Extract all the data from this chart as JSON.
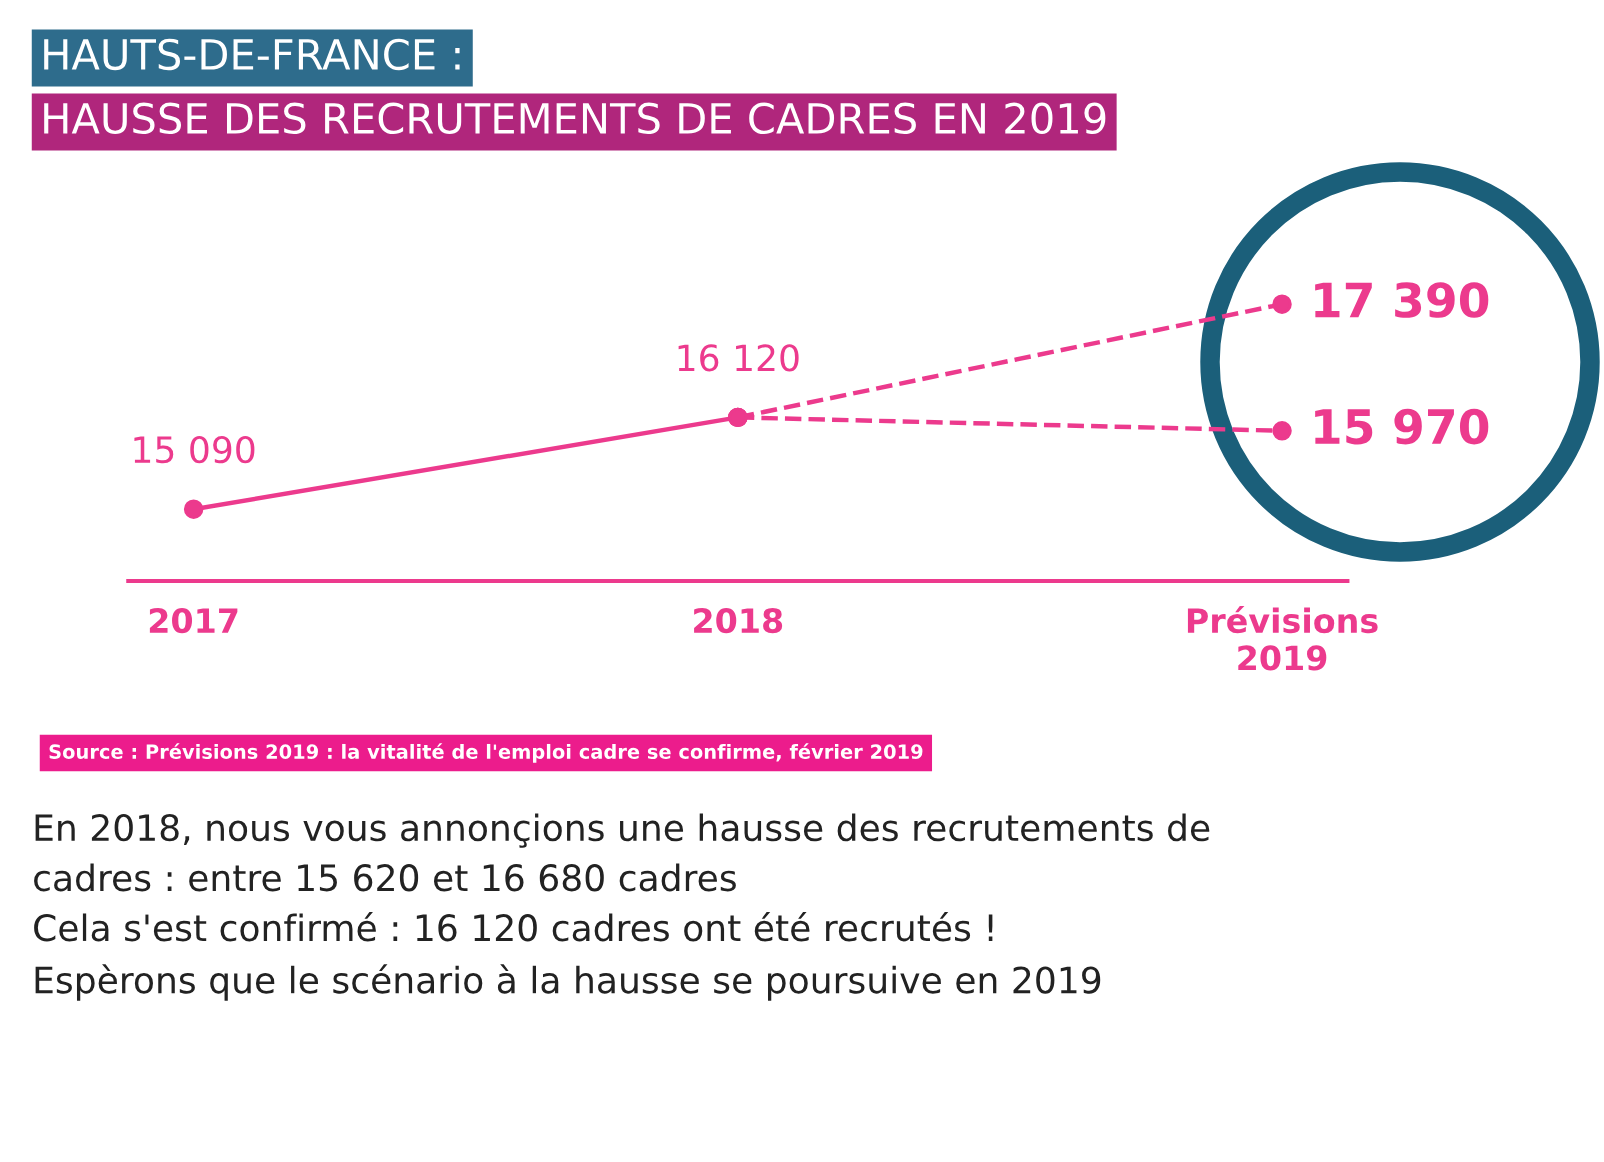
{
  "chart_data": {
    "type": "line",
    "title": "HAUTS-DE-FRANCE :",
    "subtitle": "HAUSSE DES RECRUTEMENTS DE CADRES EN 2019",
    "categories": [
      "2017",
      "2018",
      "Prévisions\n2019"
    ],
    "series": [
      {
        "color": "#ec3a8d",
        "line_style": "solid",
        "values": [
          15090,
          16120,
          null
        ],
        "value_labels": [
          "15 090",
          "16 120",
          null
        ]
      },
      {
        "color": "#ec3a8d",
        "line_style": "dashed",
        "values": [
          null,
          16120,
          17390
        ],
        "value_labels": [
          null,
          null,
          "17 390"
        ]
      },
      {
        "color": "#ec3a8d",
        "line_style": "dashed",
        "values": [
          null,
          16120,
          15970
        ],
        "value_labels": [
          null,
          null,
          "15 970"
        ]
      }
    ],
    "marker": "circle",
    "tick_labels": "x",
    "annotations": [
      "Source : Prévisions 2019 : la vitalité de l'emploi cadre se confirme, février 2019",
      "En 2018, nous vous annonçions une hausse des recrutements de\ncadres : entre 15 620 et 16 680 cadres\nCela s'est confirmé : 16 120 cadres ont été recrutés !\nEspèrons que le scénario à la hausse se poursuive en 2019"
    ]
  }
}
